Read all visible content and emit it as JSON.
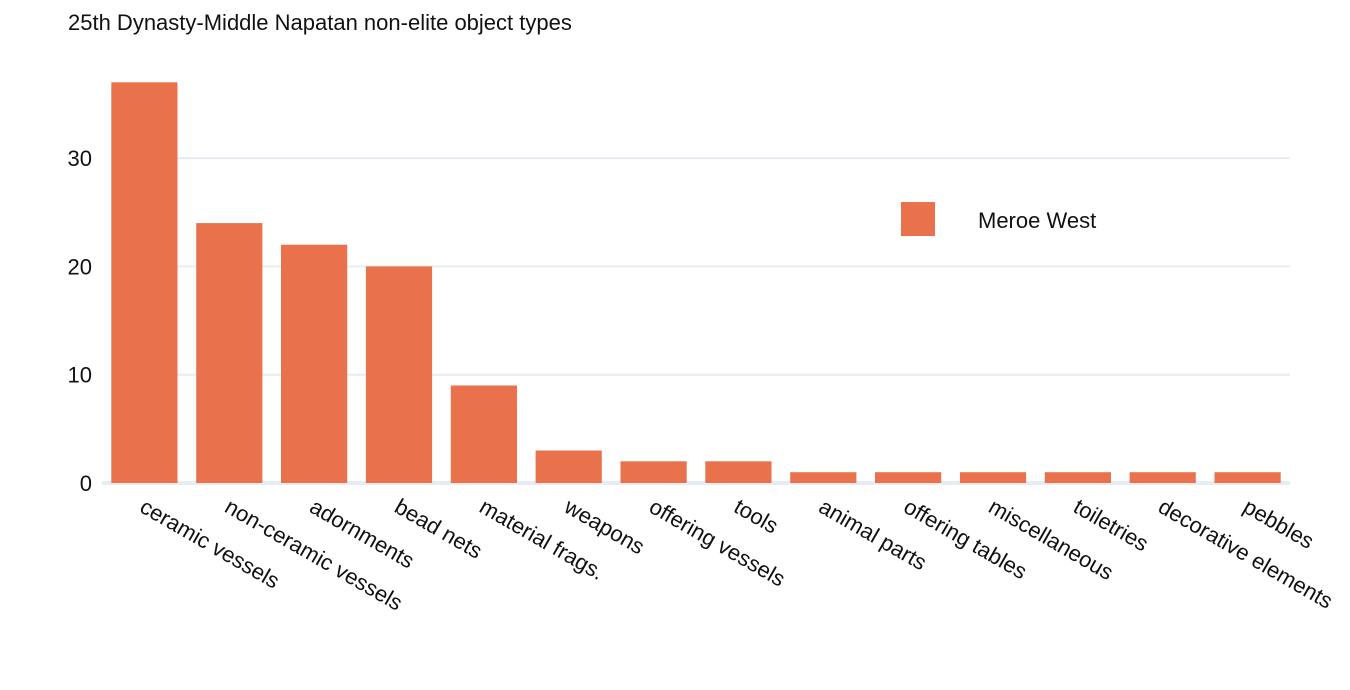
{
  "chart_data": {
    "type": "bar",
    "title": "25th Dynasty-Middle Napatan non-elite object types",
    "xlabel": "",
    "ylabel": "",
    "categories": [
      "ceramic vessels",
      "non-ceramic vessels",
      "adornments",
      "bead nets",
      "material frags.",
      "weapons",
      "offering vessels",
      "tools",
      "animal parts",
      "offering tables",
      "miscellaneous",
      "toiletries",
      "decorative elements",
      "pebbles"
    ],
    "series": [
      {
        "name": "Meroe West",
        "color": "#e9724d",
        "values": [
          37,
          24,
          22,
          20,
          9,
          3,
          2,
          2,
          1,
          1,
          1,
          1,
          1,
          1
        ]
      }
    ],
    "yticks": [
      0,
      10,
      20,
      30
    ],
    "ylim": [
      0,
      37
    ],
    "grid": true,
    "legend_position": "right",
    "x_tick_rotation": "angled"
  }
}
